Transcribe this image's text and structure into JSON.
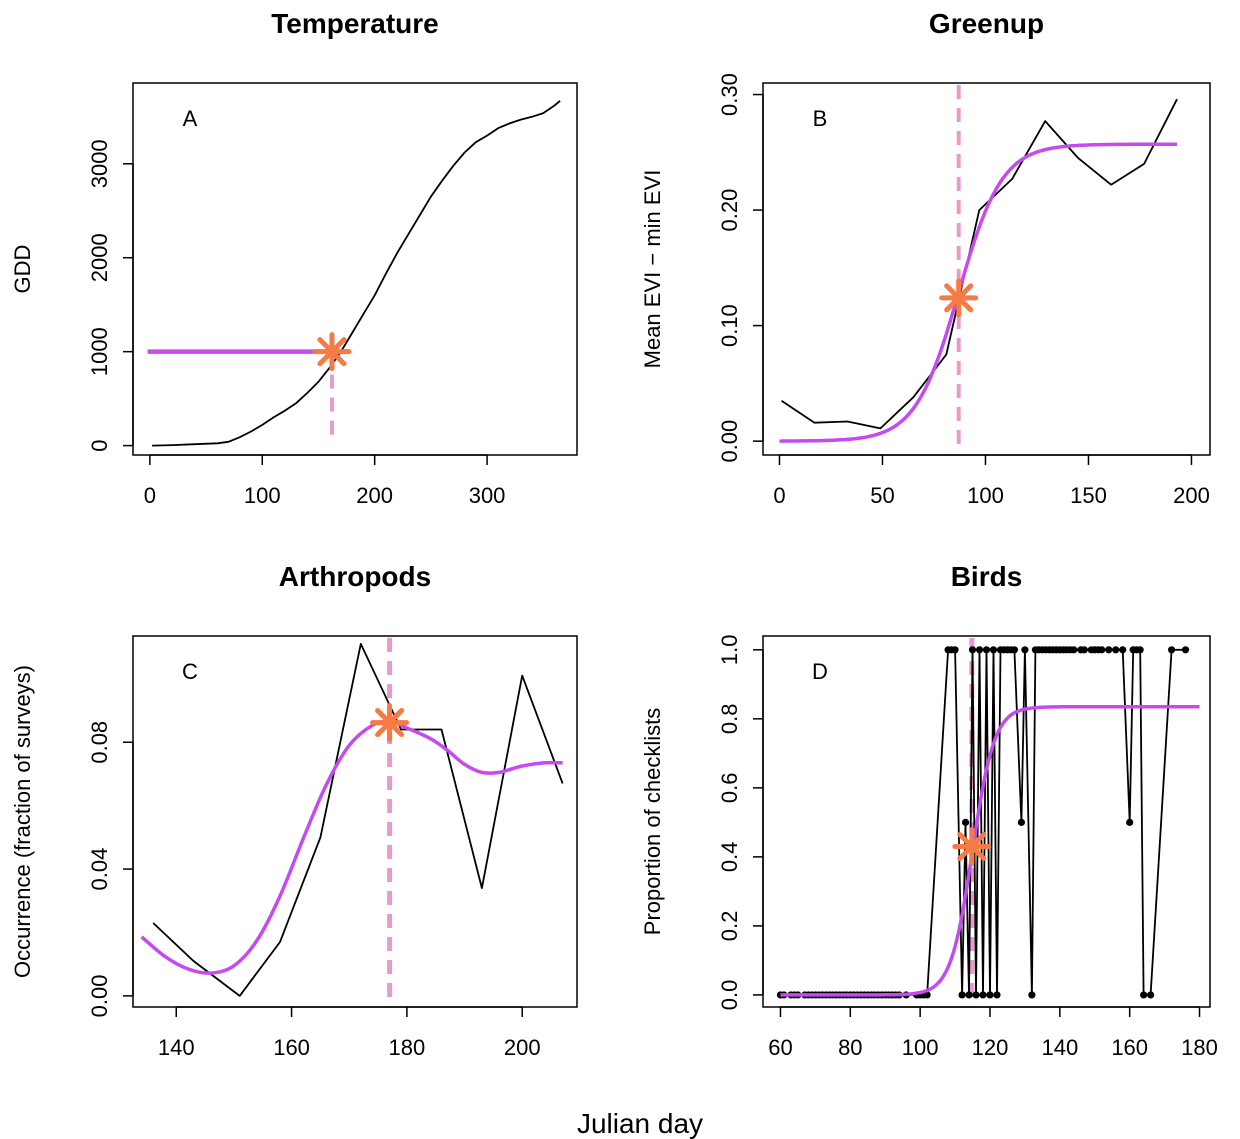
{
  "shared_xlabel": "Julian day",
  "colors": {
    "line": "#000000",
    "fit": "#C54AF0",
    "marker": "#F47A46",
    "vline": "#E89BCB",
    "hline": "#C54AF0"
  },
  "chart_data": [
    {
      "id": "A",
      "panel_label": "A",
      "type": "line",
      "title": "Temperature",
      "xlabel": "",
      "ylabel": "GDD",
      "xlim": [
        -15,
        380
      ],
      "ylim": [
        -100,
        3860
      ],
      "xticks": [
        0,
        100,
        200,
        300
      ],
      "yticks": [
        0,
        1000,
        2000,
        3000
      ],
      "series": [
        {
          "values": [
            [
              2,
              0
            ],
            [
              20,
              5
            ],
            [
              40,
              15
            ],
            [
              60,
              25
            ],
            [
              70,
              40
            ],
            [
              80,
              90
            ],
            [
              90,
              150
            ],
            [
              100,
              220
            ],
            [
              110,
              300
            ],
            [
              120,
              370
            ],
            [
              130,
              450
            ],
            [
              140,
              560
            ],
            [
              150,
              680
            ],
            [
              160,
              830
            ],
            [
              170,
              1000
            ],
            [
              180,
              1200
            ],
            [
              190,
              1400
            ],
            [
              200,
              1600
            ],
            [
              210,
              1830
            ],
            [
              220,
              2050
            ],
            [
              230,
              2250
            ],
            [
              240,
              2450
            ],
            [
              250,
              2650
            ],
            [
              260,
              2820
            ],
            [
              270,
              2980
            ],
            [
              280,
              3120
            ],
            [
              290,
              3230
            ],
            [
              300,
              3300
            ],
            [
              310,
              3380
            ],
            [
              320,
              3430
            ],
            [
              330,
              3470
            ],
            [
              340,
              3500
            ],
            [
              350,
              3540
            ],
            [
              360,
              3620
            ],
            [
              365,
              3670
            ]
          ]
        }
      ],
      "threshold_line": {
        "x0": -2,
        "x1": 162,
        "y": 1000
      },
      "onset": {
        "x": 162,
        "y": 1000
      }
    },
    {
      "id": "B",
      "panel_label": "B",
      "type": "line",
      "title": "Greenup",
      "xlabel": "",
      "ylabel": "Mean EVI − min EVI",
      "xlim": [
        -8,
        209
      ],
      "ylim": [
        -0.012,
        0.31
      ],
      "xticks": [
        0,
        50,
        100,
        150,
        200
      ],
      "yticks": [
        "0.00",
        "0.10",
        "0.20",
        "0.30"
      ],
      "series": [
        {
          "values": [
            [
              1,
              0.035
            ],
            [
              17,
              0.016
            ],
            [
              33,
              0.017
            ],
            [
              49,
              0.011
            ],
            [
              65,
              0.038
            ],
            [
              81,
              0.075
            ],
            [
              97,
              0.2
            ],
            [
              113,
              0.227
            ],
            [
              129,
              0.277
            ],
            [
              145,
              0.245
            ],
            [
              161,
              0.222
            ],
            [
              177,
              0.24
            ],
            [
              193,
              0.296
            ]
          ]
        }
      ],
      "fit": {
        "asymptote": 0.257,
        "midpoint": 87,
        "rate": 0.095,
        "x_range": [
          0,
          193
        ]
      },
      "onset": {
        "x": 87,
        "y": 0.124
      }
    },
    {
      "id": "C",
      "panel_label": "C",
      "type": "line",
      "title": "Arthropods",
      "xlabel": "",
      "ylabel": "Occurrence (fraction of surveys)",
      "xlim": [
        132.5,
        209.5
      ],
      "ylim": [
        -0.0035,
        0.1135
      ],
      "xticks": [
        140,
        160,
        180,
        200
      ],
      "yticks": [
        "0.00",
        "0.04",
        "0.08"
      ],
      "series": [
        {
          "values": [
            [
              136,
              0.023
            ],
            [
              143,
              0.011
            ],
            [
              151,
              0.0
            ],
            [
              158,
              0.017
            ],
            [
              165,
              0.05
            ],
            [
              172,
              0.111
            ],
            [
              179,
              0.084
            ],
            [
              186,
              0.084
            ],
            [
              193,
              0.034
            ],
            [
              200,
              0.101
            ],
            [
              207,
              0.067
            ]
          ]
        }
      ],
      "fit": {
        "points": [
          [
            134,
            0.0186
          ],
          [
            138,
            0.0125
          ],
          [
            142,
            0.0085
          ],
          [
            146,
            0.0072
          ],
          [
            150,
            0.0095
          ],
          [
            154,
            0.0175
          ],
          [
            158,
            0.0315
          ],
          [
            162,
            0.0495
          ],
          [
            166,
            0.0665
          ],
          [
            170,
            0.079
          ],
          [
            174,
            0.0853
          ],
          [
            177,
            0.0865
          ],
          [
            180,
            0.0845
          ],
          [
            184,
            0.0812
          ],
          [
            187,
            0.0775
          ],
          [
            190,
            0.073
          ],
          [
            193,
            0.0705
          ],
          [
            196,
            0.0705
          ],
          [
            200,
            0.0725
          ],
          [
            204,
            0.0735
          ],
          [
            207,
            0.0735
          ]
        ]
      },
      "onset": {
        "x": 177,
        "y": 0.0862
      }
    },
    {
      "id": "D",
      "panel_label": "D",
      "type": "scatter",
      "title": "Birds",
      "xlabel": "",
      "ylabel": "Proportion of checklists",
      "xlim": [
        55,
        183
      ],
      "ylim": [
        -0.035,
        1.04
      ],
      "xticks": [
        60,
        80,
        100,
        120,
        140,
        160,
        180
      ],
      "yticks": [
        "0.0",
        "0.2",
        "0.4",
        "0.6",
        "0.8",
        "1.0"
      ],
      "series": [
        {
          "values": [
            [
              60,
              0
            ],
            [
              61,
              0
            ],
            [
              63,
              0
            ],
            [
              64,
              0
            ],
            [
              65,
              0
            ],
            [
              67,
              0
            ],
            [
              68,
              0
            ],
            [
              69,
              0
            ],
            [
              70,
              0
            ],
            [
              71,
              0
            ],
            [
              72,
              0
            ],
            [
              73,
              0
            ],
            [
              74,
              0
            ],
            [
              75,
              0
            ],
            [
              76,
              0
            ],
            [
              77,
              0
            ],
            [
              78,
              0
            ],
            [
              79,
              0
            ],
            [
              80,
              0
            ],
            [
              81,
              0
            ],
            [
              82,
              0
            ],
            [
              83,
              0
            ],
            [
              84,
              0
            ],
            [
              85,
              0
            ],
            [
              86,
              0
            ],
            [
              87,
              0
            ],
            [
              88,
              0
            ],
            [
              89,
              0
            ],
            [
              90,
              0
            ],
            [
              91,
              0
            ],
            [
              92,
              0
            ],
            [
              93,
              0
            ],
            [
              94,
              0
            ],
            [
              96,
              0
            ],
            [
              99,
              0
            ],
            [
              100,
              0
            ],
            [
              101,
              0
            ],
            [
              102,
              0
            ],
            [
              108,
              1
            ],
            [
              109,
              1
            ],
            [
              110,
              1
            ],
            [
              112,
              0
            ],
            [
              113,
              0.5
            ],
            [
              114,
              0
            ],
            [
              115,
              1
            ],
            [
              116,
              0
            ],
            [
              117,
              1
            ],
            [
              118,
              0
            ],
            [
              119,
              1
            ],
            [
              120,
              0
            ],
            [
              121,
              1
            ],
            [
              122,
              0
            ],
            [
              123,
              1
            ],
            [
              124,
              1
            ],
            [
              125,
              1
            ],
            [
              126,
              1
            ],
            [
              127,
              1
            ],
            [
              129,
              0.5
            ],
            [
              130,
              1
            ],
            [
              132,
              0
            ],
            [
              133,
              1
            ],
            [
              134,
              1
            ],
            [
              135,
              1
            ],
            [
              136,
              1
            ],
            [
              137,
              1
            ],
            [
              138,
              1
            ],
            [
              139,
              1
            ],
            [
              140,
              1
            ],
            [
              141,
              1
            ],
            [
              142,
              1
            ],
            [
              143,
              1
            ],
            [
              144,
              1
            ],
            [
              146,
              1
            ],
            [
              147,
              1
            ],
            [
              149,
              1
            ],
            [
              150,
              1
            ],
            [
              151,
              1
            ],
            [
              152,
              1
            ],
            [
              154,
              1
            ],
            [
              156,
              1
            ],
            [
              158,
              1
            ],
            [
              160,
              0.5
            ],
            [
              161,
              1
            ],
            [
              162,
              1
            ],
            [
              163,
              1
            ],
            [
              164,
              0
            ],
            [
              166,
              0
            ],
            [
              172,
              1
            ],
            [
              176,
              1
            ]
          ]
        }
      ],
      "fit": {
        "asymptote": 0.835,
        "midpoint": 115,
        "rate": 0.32,
        "x_range": [
          60,
          180
        ]
      },
      "onset": {
        "x": 114.8,
        "y": 0.43
      }
    }
  ]
}
